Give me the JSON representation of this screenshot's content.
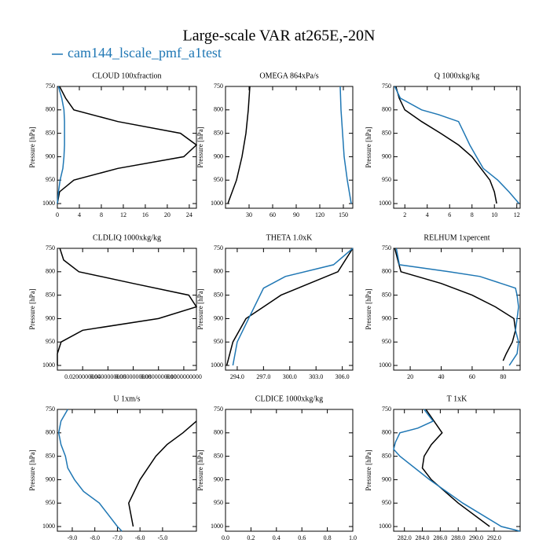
{
  "title": "Large-scale VAR at265E,-20N",
  "chart_data": [
    {
      "type": "line",
      "title": "CLOUD  100xfraction",
      "ylabel": "Pressure [hPa]",
      "y_reversed": true,
      "xlim": [
        0,
        25.3
      ],
      "xticks": [
        0,
        4,
        8,
        12,
        16,
        20,
        24
      ],
      "ylim": [
        750,
        1010
      ],
      "yticks": [
        750,
        800,
        850,
        900,
        950,
        1000
      ],
      "series": [
        {
          "color": "#000000",
          "values": [
            0.4,
            1.5,
            3,
            11,
            22.4,
            25.3,
            23,
            11,
            3,
            0.4,
            0
          ],
          "levels": [
            750,
            775,
            800,
            825,
            850,
            875,
            900,
            925,
            950,
            975,
            1000
          ]
        },
        {
          "name": "cam144_lscale_pmf_a1test",
          "color": "#1f77b4",
          "values": [
            0.2,
            0.8,
            1.2,
            1.3,
            1.3,
            1.3,
            1.2,
            1.0,
            0.5,
            0.2,
            0
          ],
          "levels": [
            750,
            775,
            800,
            825,
            850,
            875,
            900,
            925,
            950,
            975,
            1000
          ]
        }
      ]
    },
    {
      "type": "line",
      "title": "OMEGA  864xPa/s",
      "ylabel": "Pressure [hPa]",
      "y_reversed": true,
      "xlim": [
        0,
        162
      ],
      "xticks": [
        30,
        60,
        90,
        120,
        150
      ],
      "ylim": [
        750,
        1010
      ],
      "yticks": [
        750,
        800,
        850,
        900,
        950,
        1000
      ],
      "series": [
        {
          "color": "#000000",
          "values": [
            31,
            29,
            26,
            21,
            14,
            3
          ],
          "levels": [
            750,
            800,
            850,
            900,
            950,
            1000
          ]
        },
        {
          "color": "#1f77b4",
          "values": [
            146,
            147,
            149,
            151,
            155,
            160
          ],
          "levels": [
            750,
            800,
            850,
            900,
            950,
            1000
          ]
        }
      ]
    },
    {
      "type": "line",
      "title": "Q  1000xkg/kg",
      "ylabel": "Pressure [hPa]",
      "y_reversed": true,
      "xlim": [
        1,
        12.3
      ],
      "xticks": [
        2,
        4,
        6,
        8,
        10,
        12
      ],
      "ylim": [
        750,
        1010
      ],
      "yticks": [
        750,
        800,
        850,
        900,
        950,
        1000
      ],
      "series": [
        {
          "color": "#000000",
          "values": [
            1.2,
            1.5,
            2,
            3.5,
            5.2,
            6.8,
            8,
            8.8,
            9.6,
            10,
            10.2
          ],
          "levels": [
            750,
            775,
            800,
            825,
            850,
            875,
            900,
            925,
            950,
            975,
            1000
          ]
        },
        {
          "color": "#1f77b4",
          "values": [
            1.1,
            1.6,
            3.5,
            5,
            6.8,
            7.3,
            7.8,
            8.4,
            9,
            10.3,
            11.3,
            12.2
          ],
          "levels": [
            750,
            775,
            800,
            810,
            825,
            850,
            875,
            900,
            925,
            950,
            975,
            1000
          ]
        }
      ]
    },
    {
      "type": "line",
      "title": "CLDLIQ  1000xkg/kg",
      "ylabel": "Pressure [hPa]",
      "y_reversed": true,
      "xlim": [
        0,
        0.11
      ],
      "xticks": [
        {
          "value": 0.02,
          "label": "0.0200000000"
        },
        {
          "value": 0.04,
          "label": "0.0400000000"
        },
        {
          "value": 0.06,
          "label": "0.0600000000"
        },
        {
          "value": 0.08,
          "label": "0.0800000000"
        },
        {
          "value": 0.1,
          "label": "0.1000000000"
        }
      ],
      "ylim": [
        750,
        1010
      ],
      "yticks": [
        750,
        800,
        850,
        900,
        950,
        1000
      ],
      "series": [
        {
          "color": "#000000",
          "values": [
            0.002,
            0.005,
            0.017,
            0.06,
            0.104,
            0.11,
            0.08,
            0.02,
            0.003,
            0,
            0
          ],
          "levels": [
            750,
            775,
            800,
            825,
            850,
            875,
            900,
            925,
            950,
            975,
            1000
          ]
        }
      ]
    },
    {
      "type": "line",
      "title": "THETA  1.0xK",
      "ylabel": "Pressure [hPa]",
      "y_reversed": true,
      "xlim": [
        292.66,
        307.2
      ],
      "xticks": [
        {
          "value": 294,
          "label": "294.0"
        },
        {
          "value": 297,
          "label": "297.0"
        },
        {
          "value": 300,
          "label": "300.0"
        },
        {
          "value": 303,
          "label": "303.0"
        },
        {
          "value": 306,
          "label": "306.0"
        }
      ],
      "ylim": [
        750,
        1010
      ],
      "yticks": [
        750,
        800,
        850,
        900,
        950,
        1000
      ],
      "series": [
        {
          "color": "#000000",
          "values": [
            307.2,
            305.5,
            299,
            297,
            295,
            293.5,
            292.8
          ],
          "levels": [
            750,
            800,
            850,
            875,
            900,
            950,
            1000
          ]
        },
        {
          "color": "#1f77b4",
          "values": [
            307.2,
            305,
            299.5,
            297,
            295.3,
            294,
            293.5
          ],
          "levels": [
            750,
            785,
            810,
            835,
            900,
            950,
            1000
          ]
        }
      ]
    },
    {
      "type": "line",
      "title": "RELHUM  1xpercent",
      "ylabel": "Pressure [hPa]",
      "y_reversed": true,
      "xlim": [
        9.3,
        91
      ],
      "xticks": [
        20,
        40,
        60,
        80
      ],
      "ylim": [
        750,
        1010
      ],
      "yticks": [
        750,
        800,
        850,
        900,
        950,
        1000
      ],
      "series": [
        {
          "color": "#000000",
          "values": [
            10,
            12,
            14,
            40,
            60,
            75,
            87,
            88,
            86,
            82,
            80
          ],
          "levels": [
            750,
            775,
            800,
            825,
            850,
            875,
            900,
            925,
            950,
            975,
            990
          ]
        },
        {
          "color": "#1f77b4",
          "values": [
            11,
            13,
            45,
            65,
            88,
            89,
            90,
            89,
            88,
            90,
            89,
            84
          ],
          "levels": [
            750,
            785,
            800,
            810,
            835,
            850,
            875,
            900,
            925,
            950,
            975,
            1000
          ]
        }
      ]
    },
    {
      "type": "line",
      "title": "U  1xm/s",
      "ylabel": "Pressure [hPa]",
      "y_reversed": true,
      "xlim": [
        -9.66,
        -3.5
      ],
      "xticks": [
        {
          "value": -9,
          "label": "-9.0"
        },
        {
          "value": -8,
          "label": "-8.0"
        },
        {
          "value": -7,
          "label": "-7.0"
        },
        {
          "value": -6,
          "label": "-6.0"
        },
        {
          "value": -5,
          "label": "-5.0"
        }
      ],
      "ylim": [
        750,
        1010
      ],
      "yticks": [
        750,
        800,
        850,
        900,
        950,
        1000
      ],
      "series": [
        {
          "color": "#000000",
          "values": [
            -3.5,
            -4.1,
            -4.8,
            -5.3,
            -6.0,
            -6.5,
            -6.3
          ],
          "levels": [
            775,
            800,
            825,
            850,
            900,
            950,
            1000
          ]
        },
        {
          "color": "#1f77b4",
          "values": [
            -9.2,
            -9.5,
            -9.6,
            -9.5,
            -9.3,
            -9.2,
            -8.9,
            -8.5,
            -7.8,
            -7.4,
            -7.0,
            -6.8
          ],
          "levels": [
            750,
            775,
            800,
            825,
            850,
            875,
            900,
            925,
            950,
            975,
            1000,
            1010
          ]
        }
      ]
    },
    {
      "type": "line",
      "title": "CLDICE  1000xkg/kg",
      "ylabel": "Pressure [hPa]",
      "y_reversed": true,
      "xlim": [
        0,
        1
      ],
      "xticks": [
        {
          "value": 0,
          "label": "0.0"
        },
        0.2,
        0.4,
        0.6,
        0.8,
        {
          "value": 1,
          "label": "1.0"
        }
      ],
      "ylim": [
        750,
        1010
      ],
      "yticks": [
        750,
        800,
        850,
        900,
        950,
        1000
      ],
      "series": []
    },
    {
      "type": "line",
      "title": "T  1xK",
      "ylabel": "Pressure [hPa]",
      "y_reversed": true,
      "xlim": [
        280.8,
        294.9
      ],
      "xticks": [
        {
          "value": 282,
          "label": "282.0"
        },
        {
          "value": 284,
          "label": "284.0"
        },
        {
          "value": 286,
          "label": "286.0"
        },
        {
          "value": 288,
          "label": "288.0"
        },
        {
          "value": 290,
          "label": "290.0"
        },
        {
          "value": 292,
          "label": "292.0"
        }
      ],
      "ylim": [
        750,
        1010
      ],
      "yticks": [
        750,
        800,
        850,
        900,
        950,
        1000
      ],
      "series": [
        {
          "color": "#000000",
          "values": [
            284.4,
            285.3,
            286.2,
            285.0,
            284.2,
            284.0,
            285.0,
            288.0,
            291.5
          ],
          "levels": [
            750,
            775,
            800,
            825,
            850,
            875,
            900,
            950,
            1000
          ]
        },
        {
          "color": "#1f77b4",
          "values": [
            284.2,
            285.2,
            283.5,
            281.5,
            281,
            280.8,
            281.5,
            284.8,
            288.5,
            292.8,
            294.9
          ],
          "levels": [
            750,
            775,
            790,
            800,
            820,
            835,
            850,
            900,
            950,
            1000,
            1010
          ]
        }
      ]
    }
  ]
}
